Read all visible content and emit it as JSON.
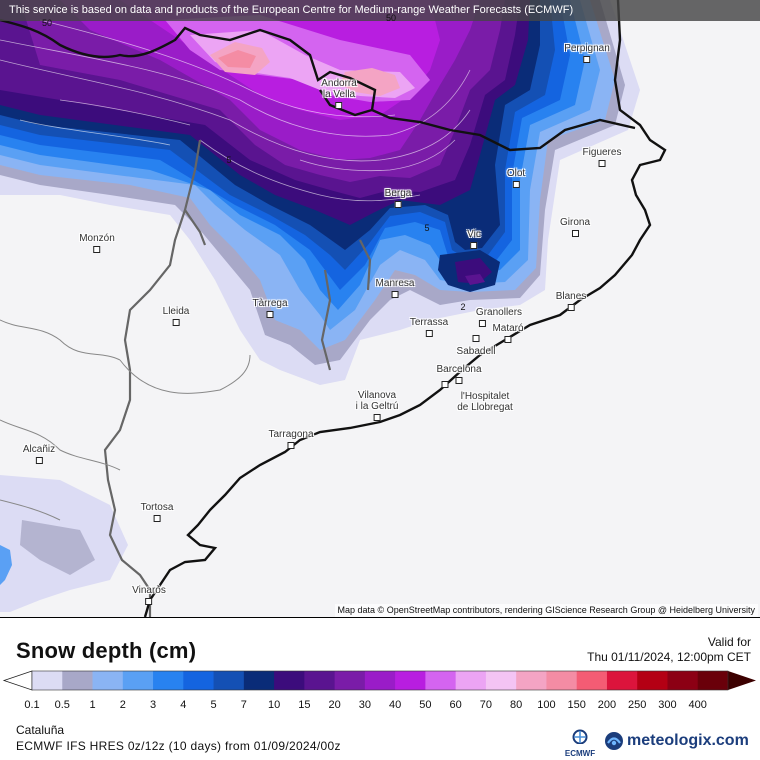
{
  "attribution_top": "This service is based on data and products of the European Centre for Medium-range Weather Forecasts (ECMWF)",
  "attribution_bottom": "Map data © OpenStreetMap contributors, rendering GIScience Research Group @ Heidelberg University",
  "map": {
    "cities": [
      {
        "name": "Perpignan",
        "id": "perpignan"
      },
      {
        "name": "Andorra\nla Vella",
        "id": "andorra-la-vella"
      },
      {
        "name": "Figueres",
        "id": "figueres"
      },
      {
        "name": "Olot",
        "id": "olot"
      },
      {
        "name": "Berga",
        "id": "berga"
      },
      {
        "name": "Girona",
        "id": "girona"
      },
      {
        "name": "Vic",
        "id": "vic"
      },
      {
        "name": "Monzón",
        "id": "monzon"
      },
      {
        "name": "Manresa",
        "id": "manresa"
      },
      {
        "name": "Blanes",
        "id": "blanes"
      },
      {
        "name": "Lleida",
        "id": "lleida"
      },
      {
        "name": "Tàrrega",
        "id": "tarrega"
      },
      {
        "name": "Granollers",
        "id": "granollers"
      },
      {
        "name": "Terrassa",
        "id": "terrassa"
      },
      {
        "name": "Mataró",
        "id": "mataro"
      },
      {
        "name": "Sabadell",
        "id": "sabadell"
      },
      {
        "name": "Barcelona",
        "id": "barcelona"
      },
      {
        "name": "l'Hospitalet\nde Llobregat",
        "id": "hospitalet"
      },
      {
        "name": "Vilanova\ni la Geltrú",
        "id": "vilanova"
      },
      {
        "name": "Tarragona",
        "id": "tarragona"
      },
      {
        "name": "Alcañiz",
        "id": "alcaniz"
      },
      {
        "name": "Tortosa",
        "id": "tortosa"
      },
      {
        "name": "Vinaròs",
        "id": "vinaros"
      }
    ],
    "contour_labels": [
      "50",
      "5",
      "5",
      "2",
      "50"
    ]
  },
  "legend": {
    "title": "Snow depth (cm)",
    "valid_for": "Valid for",
    "valid_time": "Thu 01/11/2024, 12:00pm CET",
    "ticks": [
      "0.1",
      "0.5",
      "1",
      "2",
      "3",
      "4",
      "5",
      "7",
      "10",
      "15",
      "20",
      "30",
      "40",
      "50",
      "60",
      "70",
      "80",
      "100",
      "150",
      "200",
      "250",
      "300",
      "400"
    ],
    "colors": [
      "#dcdcf4",
      "#a8a8c8",
      "#8ab4f4",
      "#5aa0f4",
      "#2882f0",
      "#1464e0",
      "#1450b4",
      "#0a2c78",
      "#3c0c7c",
      "#5a1490",
      "#7a1ca8",
      "#9a1cc8",
      "#b81ee0",
      "#d464f0",
      "#eca4f4",
      "#f4c4f4",
      "#f4a4c4",
      "#f48ca4",
      "#f45c74",
      "#dc143c",
      "#b40014",
      "#8c0014",
      "#6a000a",
      "#3c0000"
    ],
    "region": "Cataluña",
    "model_line": "ECMWF IFS HRES 0z/12z (10 days) from 01/09/2024/00z"
  },
  "logos": {
    "ecmwf": "ECMWF",
    "meteologix": "meteologix.com"
  }
}
